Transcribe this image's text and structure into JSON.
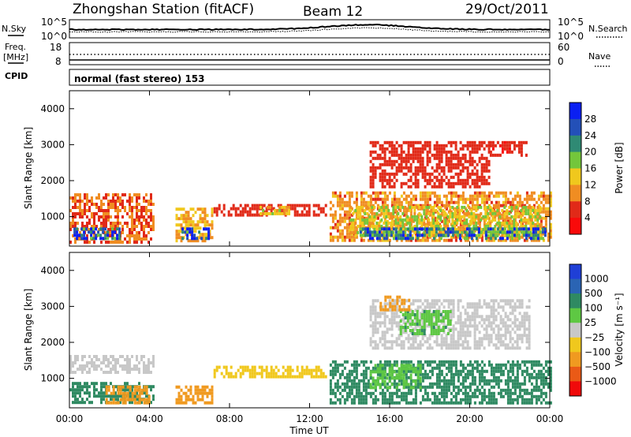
{
  "header": {
    "station": "Zhongshan Station (fitACF)",
    "beam": "Beam 12",
    "date": "29/Oct/2011"
  },
  "status_panel": {
    "nsky_label": "N.Sky",
    "nsky_ticks": [
      "10^5",
      "10^0"
    ],
    "nsearch_label": "N.Search",
    "freq_label_1": "Freq.",
    "freq_label_2": "[MHz]",
    "freq_ticks": [
      "18",
      "8"
    ],
    "nave_label": "Nave",
    "nave_ticks": [
      "60",
      "0"
    ],
    "cpid_label": "CPID",
    "cpid_text": "normal (fast stereo) 153"
  },
  "chart_data": [
    {
      "type": "heatmap",
      "parameter": "Power",
      "ylabel": "Slant Range [km]",
      "xlabel": "Time UT",
      "ylim": [
        180,
        4500
      ],
      "xlim": [
        0,
        24
      ],
      "yticks": [
        1000,
        2000,
        3000,
        4000
      ],
      "xtick_labels": [
        "00:00",
        "04:00",
        "08:00",
        "12:00",
        "16:00",
        "20:00",
        "00:00"
      ],
      "colorbar_label": "Power [dB]",
      "colorbar_ticks": [
        "4",
        "8",
        "12",
        "16",
        "20",
        "24",
        "28"
      ],
      "colorbar_colors": [
        "#0a1ff2",
        "#2350b8",
        "#2f8a74",
        "#74c63b",
        "#f0c81d",
        "#f08d22",
        "#e12a18",
        "#fa0a0a"
      ],
      "blobs": [
        {
          "t0": 0.0,
          "t1": 4.2,
          "r0": 300,
          "r1": 1650,
          "v": 8
        },
        {
          "t0": 0.2,
          "t1": 2.5,
          "r0": 350,
          "r1": 700,
          "v": 26
        },
        {
          "t0": 5.3,
          "t1": 7.1,
          "r0": 350,
          "r1": 1250,
          "v": 12
        },
        {
          "t0": 5.6,
          "t1": 7.0,
          "r0": 400,
          "r1": 700,
          "v": 26
        },
        {
          "t0": 7.2,
          "t1": 12.8,
          "r0": 1050,
          "r1": 1350,
          "v": 6
        },
        {
          "t0": 9.5,
          "t1": 11.0,
          "r0": 1100,
          "r1": 1300,
          "v": 14
        },
        {
          "t0": 13.0,
          "t1": 24.0,
          "r0": 300,
          "r1": 1700,
          "v": 10
        },
        {
          "t0": 14.0,
          "t1": 23.5,
          "r0": 500,
          "r1": 1300,
          "v": 15
        },
        {
          "t0": 14.5,
          "t1": 23.8,
          "r0": 350,
          "r1": 700,
          "v": 24
        },
        {
          "t0": 15.0,
          "t1": 21.0,
          "r0": 1800,
          "r1": 3100,
          "v": 6
        },
        {
          "t0": 21.0,
          "t1": 22.8,
          "r0": 2700,
          "r1": 3100,
          "v": 5
        }
      ]
    },
    {
      "type": "heatmap",
      "parameter": "Velocity",
      "ylabel": "Slant Range [km]",
      "xlabel": "Time UT",
      "ylim": [
        180,
        4500
      ],
      "xlim": [
        0,
        24
      ],
      "yticks": [
        1000,
        2000,
        3000,
        4000
      ],
      "xtick_labels": [
        "00:00",
        "04:00",
        "08:00",
        "12:00",
        "16:00",
        "20:00",
        "00:00"
      ],
      "colorbar_label": "Velocity [m s⁻¹]",
      "colorbar_ticks": [
        "1000",
        "500",
        "100",
        "25",
        "−25",
        "−100",
        "−500",
        "−1000"
      ],
      "colorbar_colors": [
        "#1f3fd6",
        "#2a64b4",
        "#2f8a62",
        "#5ec843",
        "#c8c8c8",
        "#f0c81d",
        "#f09a20",
        "#ea5a16",
        "#f00a0a"
      ],
      "blobs": [
        {
          "t0": 0.0,
          "t1": 4.2,
          "r0": 1150,
          "r1": 1650,
          "v": 0
        },
        {
          "t0": 0.0,
          "t1": 4.2,
          "r0": 300,
          "r1": 900,
          "v": 200
        },
        {
          "t0": 1.8,
          "t1": 4.0,
          "r0": 350,
          "r1": 800,
          "v": -200
        },
        {
          "t0": 5.3,
          "t1": 7.1,
          "r0": 350,
          "r1": 800,
          "v": -250
        },
        {
          "t0": 7.2,
          "t1": 12.8,
          "r0": 1050,
          "r1": 1350,
          "v": -50
        },
        {
          "t0": 13.0,
          "t1": 24.0,
          "r0": 300,
          "r1": 1500,
          "v": 200
        },
        {
          "t0": 15.0,
          "t1": 17.5,
          "r0": 700,
          "r1": 1400,
          "v": 80
        },
        {
          "t0": 15.0,
          "t1": 23.0,
          "r0": 1800,
          "r1": 3200,
          "v": 0
        },
        {
          "t0": 16.5,
          "t1": 19.0,
          "r0": 2200,
          "r1": 2900,
          "v": 80
        },
        {
          "t0": 15.5,
          "t1": 17.0,
          "r0": 2900,
          "r1": 3300,
          "v": -200
        }
      ]
    }
  ]
}
